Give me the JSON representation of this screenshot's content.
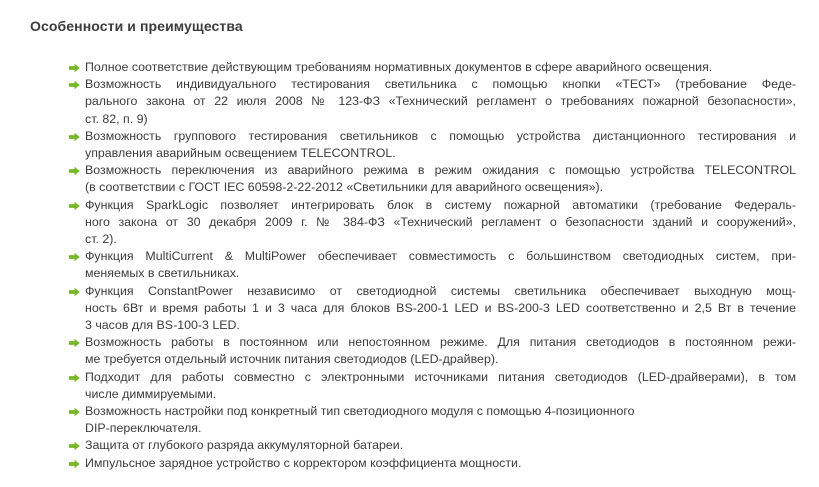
{
  "title": "Особенности и преимущества",
  "colors": {
    "accent": "#76b82a",
    "text": "#3c3c3c",
    "background": "#ffffff"
  },
  "features": {
    "bullet_icon": "arrow-right-icon",
    "items": [
      {
        "lines": [
          "Полное соответствие действующим требованиям нормативных документов в сфере аварийного освещения."
        ]
      },
      {
        "lines": [
          "Возможность индивидуального тестирования светильника с помощью кнопки «ТЕСТ» (требование Феде-",
          "рального закона от 22 июля 2008 № 123-ФЗ «Технический регламент о требованиях пожарной безопасности»,",
          "ст. 82, п. 9)"
        ]
      },
      {
        "lines": [
          "Возможность группового тестирования светильников с помощью устройства дистанционного тестирования и",
          "управления аварийным освещением TELECONTROL."
        ]
      },
      {
        "lines": [
          "Возможность переключения из аварийного режима в режим ожидания с помощью устройства TELECONTROL",
          "(в соответствии с ГОСТ IEC 60598-2-22-2012 «Светильники для аварийного освещения»)."
        ]
      },
      {
        "lines": [
          "Функция SparkLogic позволяет интегрировать блок в систему пожарной автоматики (требование Федераль-",
          "ного закона от 30 декабря 2009 г. № 384-ФЗ «Технический регламент о безопасности зданий и сооружений»,",
          "ст. 2)."
        ]
      },
      {
        "lines": [
          "Функция MultiCurrent & MultiPower обеспечивает совместимость с большинством светодиодных систем, при-",
          "меняемых в светильниках."
        ]
      },
      {
        "lines": [
          "Функция ConstantPower независимо от светодиодной системы светильника обеспечивает выходную мощ-",
          "ность 6Вт и время работы 1 и 3 часа для блоков BS-200-1 LED и BS-200-3 LED соответственно и 2,5 Вт в течение",
          "3 часов для BS-100-3 LED."
        ]
      },
      {
        "lines": [
          "Возможность работы в постоянном или непостоянном режиме. Для питания светодиодов в постоянном режи-",
          "ме требуется отдельный источник питания светодиодов (LED-драйвер)."
        ]
      },
      {
        "lines": [
          "Подходит для работы совместно с электронными источниками питания светодиодов (LED-драйверами), в том",
          "числе диммируемыми."
        ]
      },
      {
        "lines": [
          "Возможность настройки под конкретный тип светодиодного модуля с помощью 4-позиционного",
          "DIP-переключателя."
        ],
        "no_stretch": [
          0
        ]
      },
      {
        "lines": [
          "Защита от глубокого разряда аккумуляторной батареи."
        ]
      },
      {
        "lines": [
          "Импульсное зарядное устройство с корректором коэффициента мощности."
        ]
      }
    ]
  }
}
